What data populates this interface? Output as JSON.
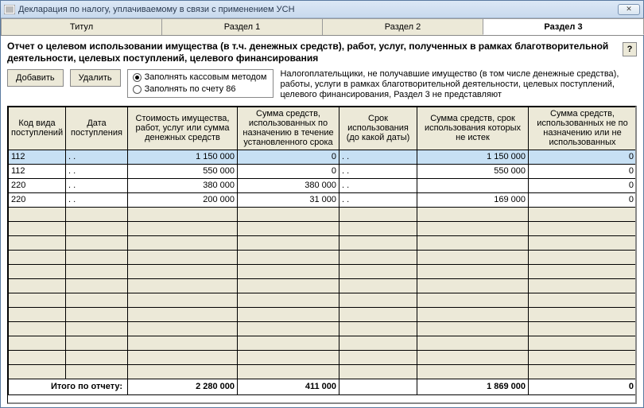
{
  "window": {
    "title": "Декларация по налогу, уплачиваемому в связи с применением УСН",
    "close_glyph": "✕"
  },
  "tabs": {
    "items": [
      {
        "label": "Титул",
        "active": false
      },
      {
        "label": "Раздел 1",
        "active": false
      },
      {
        "label": "Раздел 2",
        "active": false
      },
      {
        "label": "Раздел 3",
        "active": true
      }
    ]
  },
  "heading": "Отчет о целевом использовании имущества (в т.ч. денежных средств), работ, услуг, полученных в рамках благотворительной деятельности, целевых поступлений, целевого финансирования",
  "help_label": "?",
  "buttons": {
    "add": "Добавить",
    "delete": "Удалить"
  },
  "radio": {
    "option1": "Заполнять кассовым методом",
    "option2": "Заполнять по счету 86",
    "selected": 0
  },
  "note": "Налогоплательщики, не получавшие имущество (в том числе денежные средства), работы, услуги в рамках благотворительной деятельности, целевых поступлений, целевого финансирования, Раздел 3 не представляют",
  "table": {
    "columns": [
      "Код вида поступлений",
      "Дата поступления",
      "Стоимость имущества, работ, услуг или сумма денежных средств",
      "Сумма средств, использованных по назначению в течение установленного срока",
      "Срок использования (до какой даты)",
      "Сумма средств, срок использования которых не истек",
      "Сумма средств, использованных не по назначению или не использованных"
    ],
    "col_align": [
      "txt",
      "txt",
      "num",
      "num",
      "txt",
      "num",
      "num"
    ],
    "rows": [
      {
        "selected": true,
        "cells": [
          "112",
          " .  .",
          "1 150 000",
          "0",
          " .  .",
          "1 150 000",
          "0"
        ]
      },
      {
        "selected": false,
        "cells": [
          "112",
          " .  .",
          "550 000",
          "0",
          " .  .",
          "550 000",
          "0"
        ]
      },
      {
        "selected": false,
        "cells": [
          "220",
          " .  .",
          "380 000",
          "380 000",
          " .  .",
          "",
          "0"
        ]
      },
      {
        "selected": false,
        "cells": [
          "220",
          " .  .",
          "200 000",
          "31 000",
          " .  .",
          "169 000",
          "0"
        ]
      }
    ],
    "empty_rows": 12,
    "totals": {
      "label": "Итого по отчету:",
      "cells": [
        "",
        "",
        "2 280 000",
        "411 000",
        "",
        "1 869 000",
        "0"
      ]
    }
  },
  "colors": {
    "titlebar_start": "#dce8f6",
    "titlebar_end": "#c8d9ed",
    "panel_bg": "#ece9d8",
    "selected_row": "#c7e0f4",
    "border": "#000000"
  }
}
